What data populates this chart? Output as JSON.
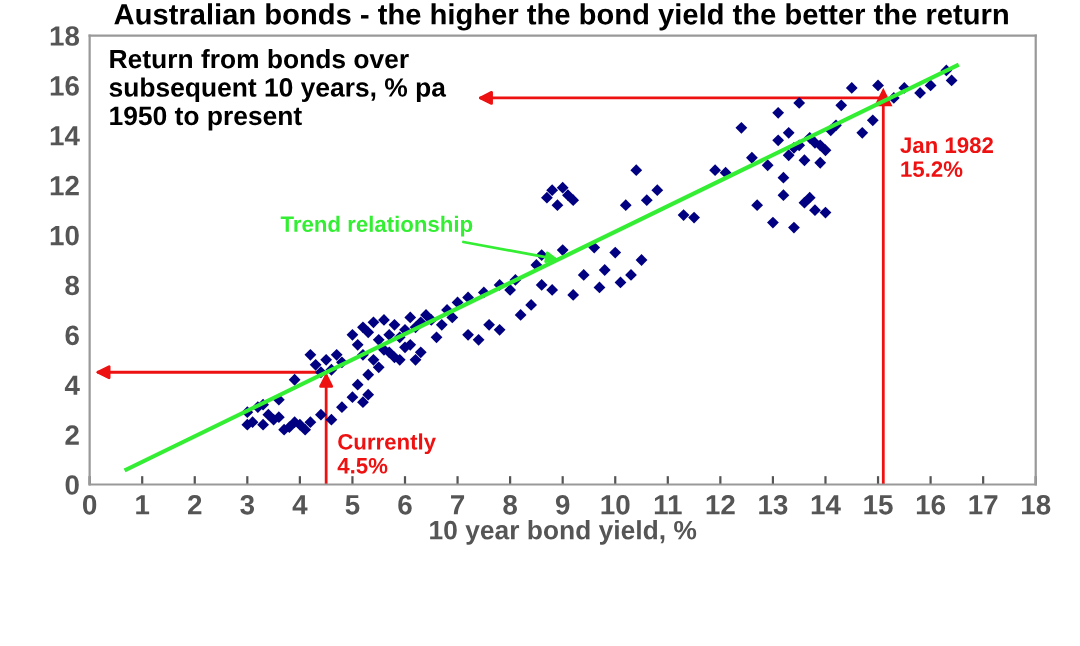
{
  "chart_data": {
    "type": "scatter",
    "title": "Australian bonds - the higher the bond yield the better the return",
    "xlabel": "10 year bond yield, %",
    "ylabel": "Return from bonds over\nsubsequent 10 years, % pa\n1950 to present",
    "xlim": [
      0,
      18
    ],
    "xticks": [
      0,
      1,
      2,
      3,
      4,
      5,
      6,
      7,
      8,
      9,
      10,
      11,
      12,
      13,
      14,
      15,
      16,
      17,
      18
    ],
    "ylim": [
      0,
      18
    ],
    "yticks": [
      0,
      2,
      4,
      6,
      8,
      10,
      12,
      14,
      16,
      18
    ],
    "grid": false,
    "series": [
      {
        "color": "#000080",
        "marker": "diamond",
        "x": [
          3.0,
          3.1,
          3.2,
          3.3,
          3.4,
          3.5,
          3.6,
          3.7,
          3.8,
          3.9,
          4.0,
          4.1,
          4.2,
          3.0,
          3.3,
          3.6,
          3.9,
          4.2,
          4.3,
          4.4,
          4.5,
          4.6,
          4.7,
          4.8,
          4.4,
          4.6,
          4.8,
          5.0,
          5.1,
          5.2,
          5.3,
          5.0,
          5.1,
          5.2,
          5.3,
          5.4,
          5.5,
          5.6,
          5.7,
          5.8,
          5.9,
          6.0,
          6.1,
          6.2,
          6.3,
          6.4,
          5.2,
          5.4,
          5.6,
          5.8,
          6.0,
          6.2,
          5.3,
          5.5,
          5.7,
          5.9,
          6.1,
          6.3,
          6.5,
          6.6,
          6.8,
          7.0,
          7.2,
          7.4,
          7.6,
          7.8,
          8.0,
          8.2,
          8.4,
          6.7,
          6.9,
          7.2,
          7.5,
          7.8,
          8.1,
          8.5,
          8.6,
          8.7,
          8.8,
          8.9,
          9.0,
          9.1,
          9.2,
          8.6,
          8.8,
          9.0,
          9.2,
          9.4,
          9.6,
          9.7,
          9.8,
          10.0,
          10.1,
          10.3,
          10.5,
          10.2,
          10.4,
          10.6,
          10.8,
          11.3,
          11.5,
          11.9,
          12.1,
          12.4,
          12.6,
          12.7,
          12.9,
          13.1,
          13.2,
          13.3,
          13.4,
          13.5,
          13.6,
          13.7,
          13.8,
          13.9,
          14.0,
          13.0,
          13.2,
          13.4,
          13.6,
          13.8,
          14.0,
          13.1,
          13.3,
          13.5,
          13.7,
          13.9,
          14.1,
          14.2,
          14.3,
          14.5,
          14.7,
          14.9,
          15.0,
          15.3,
          15.5,
          15.8,
          16.0,
          16.3,
          16.4
        ],
        "values": [
          2.9,
          2.5,
          3.1,
          2.4,
          2.8,
          2.6,
          2.7,
          2.2,
          2.3,
          2.5,
          2.4,
          2.2,
          2.5,
          2.4,
          3.2,
          3.4,
          4.2,
          5.2,
          4.8,
          4.5,
          5.0,
          4.6,
          5.2,
          4.9,
          2.8,
          2.6,
          3.1,
          3.5,
          4.0,
          3.3,
          3.6,
          6.0,
          5.6,
          6.3,
          6.1,
          6.5,
          5.8,
          6.6,
          6.0,
          6.4,
          5.9,
          6.2,
          6.7,
          6.3,
          6.5,
          6.8,
          5.2,
          5.0,
          5.4,
          5.1,
          5.5,
          5.0,
          4.4,
          4.7,
          5.3,
          5.0,
          5.6,
          5.3,
          6.6,
          5.9,
          7.0,
          7.3,
          6.0,
          5.8,
          6.4,
          6.2,
          7.8,
          6.8,
          7.2,
          6.4,
          6.7,
          7.5,
          7.7,
          8.0,
          8.2,
          8.8,
          9.2,
          11.5,
          11.8,
          11.2,
          11.9,
          11.6,
          11.4,
          8.0,
          7.8,
          9.4,
          7.6,
          8.4,
          9.5,
          7.9,
          8.6,
          9.3,
          8.1,
          8.4,
          9.0,
          11.2,
          12.6,
          11.4,
          11.8,
          10.8,
          10.7,
          12.6,
          12.5,
          14.3,
          13.1,
          11.2,
          12.8,
          14.9,
          12.3,
          13.2,
          13.5,
          15.3,
          13.0,
          11.5,
          13.7,
          12.9,
          13.4,
          10.5,
          11.6,
          10.3,
          11.3,
          11.0,
          10.9,
          13.8,
          14.1,
          13.6,
          13.9,
          13.6,
          14.2,
          14.4,
          15.2,
          15.9,
          14.1,
          14.6,
          16.0,
          15.5,
          15.9,
          15.7,
          16.0,
          16.6,
          16.2
        ]
      },
      {
        "type": "line",
        "name": "Trend relationship",
        "color": "#33ee33",
        "x": [
          0.7,
          16.5
        ],
        "values": [
          0.6,
          16.8
        ]
      }
    ],
    "ref_lines": [
      {
        "axis": "x",
        "value": 15.1,
        "color": "#ee1111"
      }
    ],
    "annotations": [
      {
        "text": "Currently\n4.5%",
        "x": 4.5,
        "y": 4.5
      },
      {
        "text": "Jan 1982\n15.2%",
        "x": 15.1,
        "y": 15.5
      }
    ]
  }
}
